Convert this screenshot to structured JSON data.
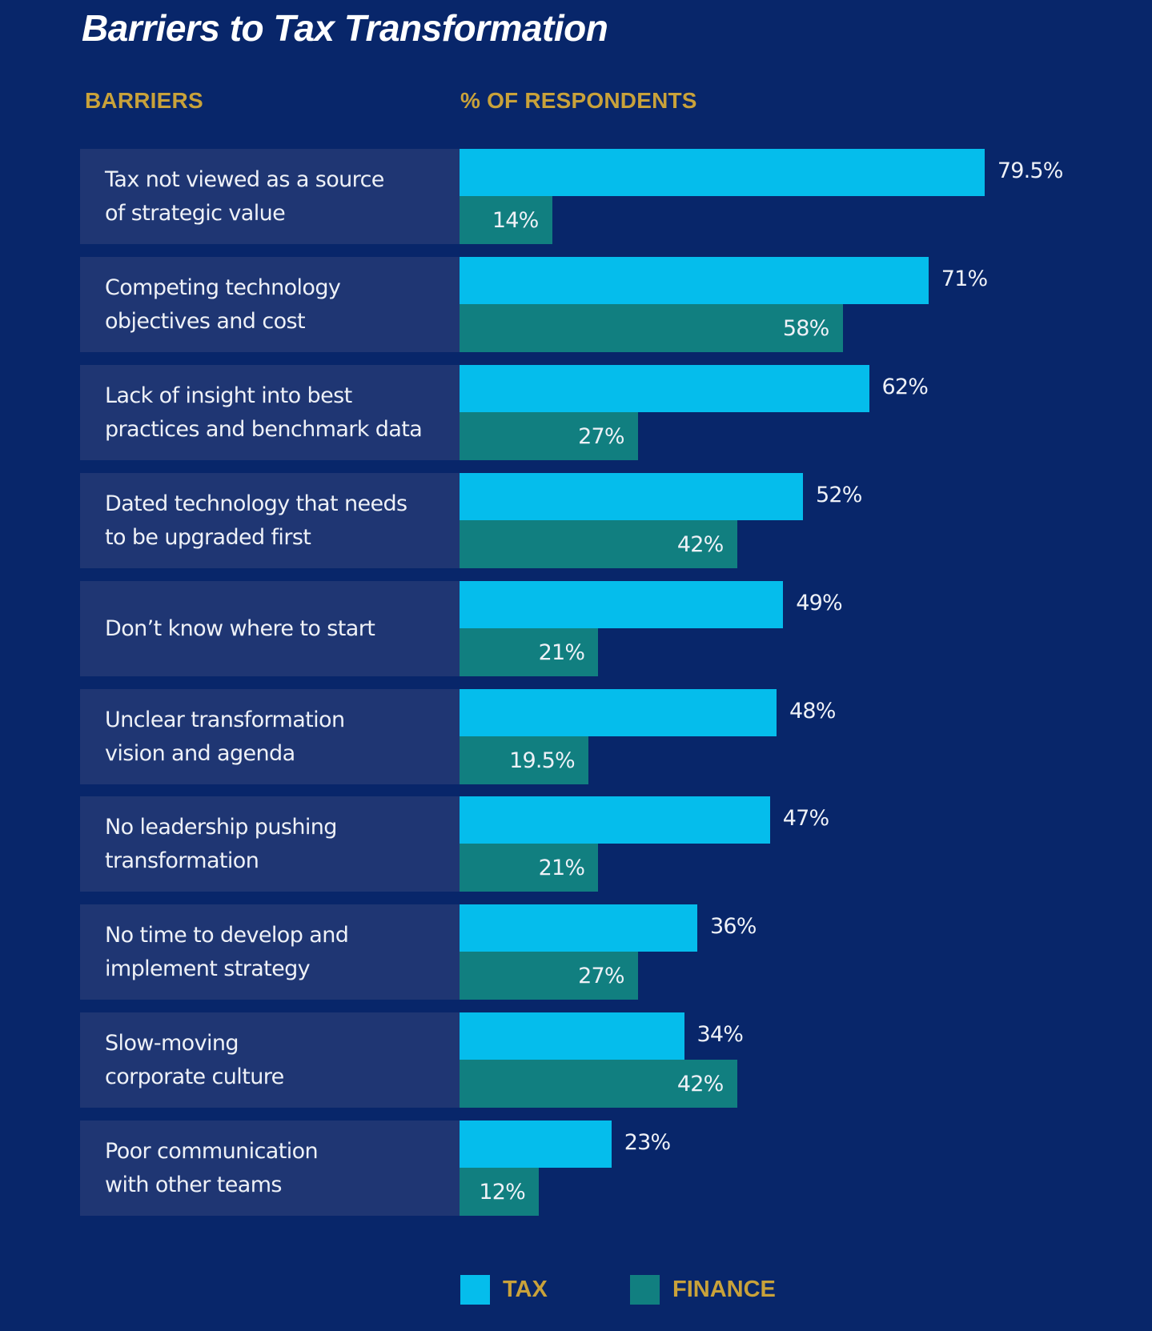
{
  "chart_data": {
    "type": "bar",
    "orientation": "horizontal",
    "title": "Barriers to Tax Transformation",
    "category_header": "BARRIERS",
    "value_header": "% OF RESPONDENTS",
    "xlabel": "% of respondents",
    "ylabel": "Barriers",
    "xlim": [
      0,
      100
    ],
    "grid": false,
    "legend_position": "bottom",
    "categories": [
      "Tax not viewed as a source\nof strategic value",
      "Competing technology\nobjectives and cost",
      "Lack of insight into best\npractices and benchmark data",
      "Dated technology that needs\nto be upgraded first",
      "Don’t know where to start",
      "Unclear transformation\nvision and agenda",
      "No leadership pushing\ntransformation",
      "No time to develop and\nimplement strategy",
      "Slow-moving\ncorporate culture",
      "Poor communication\nwith other teams"
    ],
    "series": [
      {
        "name": "TAX",
        "color": "#05bdec",
        "values": [
          79.5,
          71,
          62,
          52,
          49,
          48,
          47,
          36,
          34,
          23
        ],
        "labels": [
          "79.5%",
          "71%",
          "62%",
          "52%",
          "49%",
          "48%",
          "47%",
          "36%",
          "34%",
          "23%"
        ]
      },
      {
        "name": "FINANCE",
        "color": "#117f80",
        "values": [
          14,
          58,
          27,
          42,
          21,
          19.5,
          21,
          27,
          42,
          12
        ],
        "labels": [
          "14%",
          "58%",
          "27%",
          "42%",
          "21%",
          "19.5%",
          "21%",
          "27%",
          "42%",
          "12%"
        ]
      }
    ]
  },
  "colors": {
    "background": "#08266a",
    "label_panel": "#1f3673",
    "header_gold": "#c9a23a",
    "text": "#eef1f7"
  }
}
